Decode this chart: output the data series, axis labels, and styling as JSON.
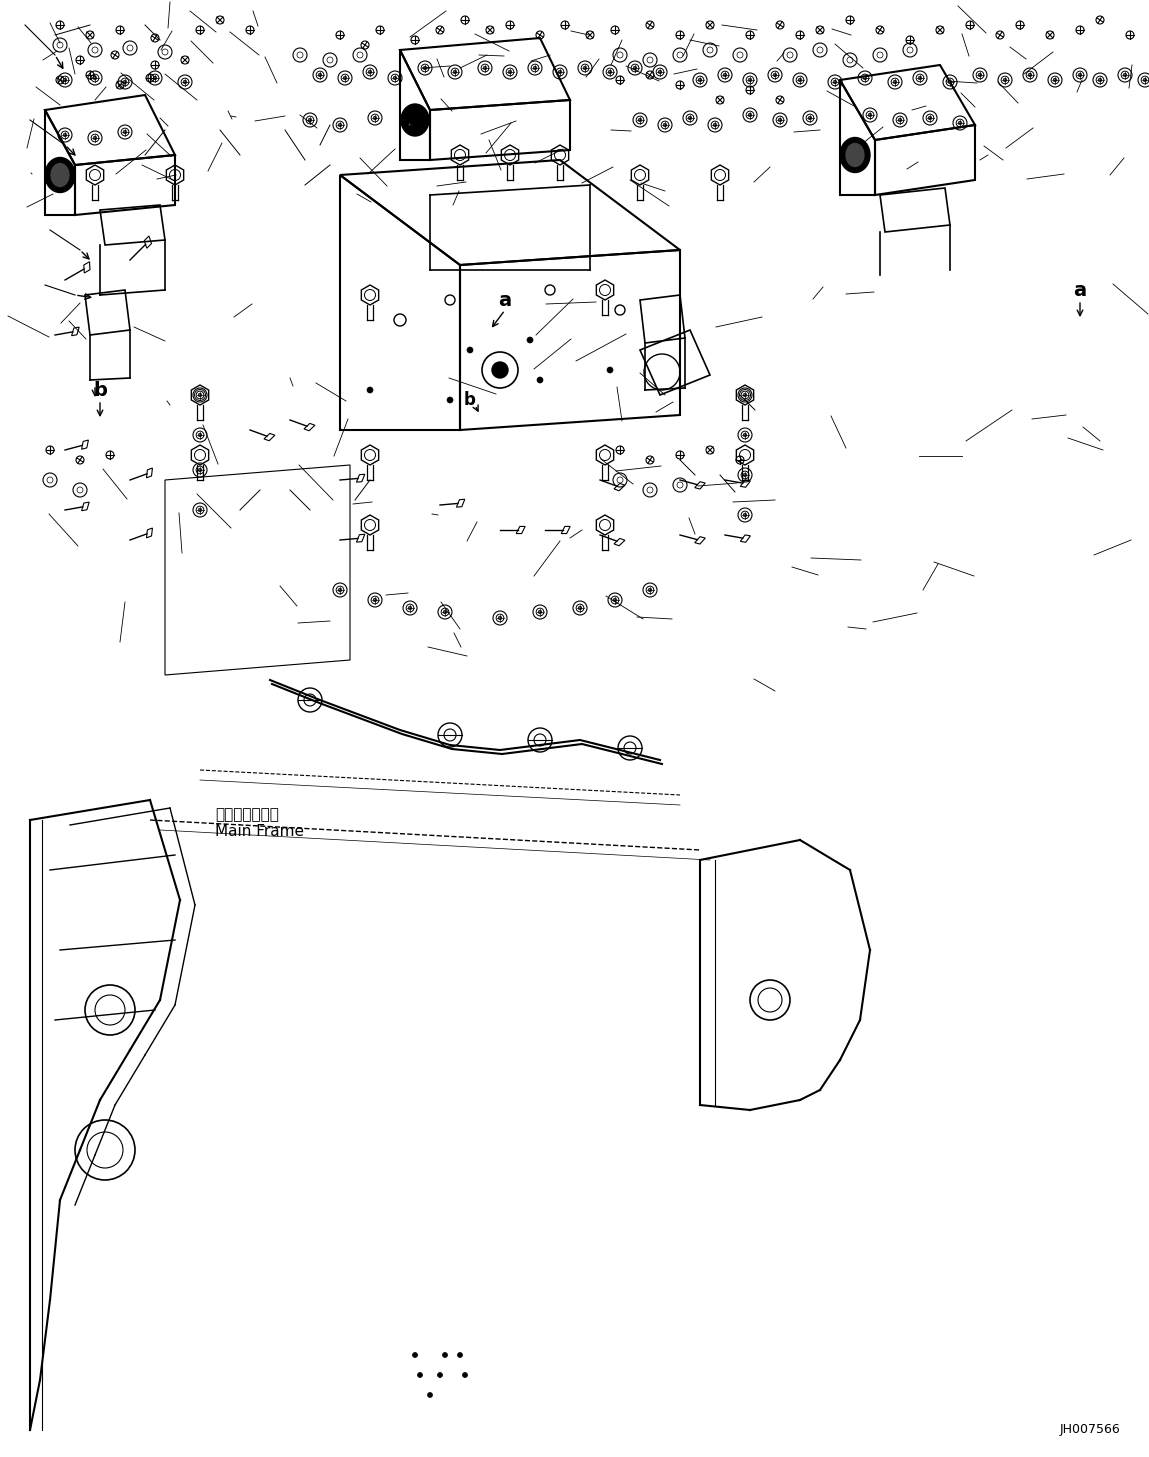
{
  "title": "",
  "background_color": "#ffffff",
  "line_color": "#000000",
  "image_code": "JH007566",
  "main_frame_label_jp": "メインフレーム",
  "main_frame_label_en": "Main Frame",
  "label_a": "a",
  "label_b": "b",
  "figsize": [
    11.49,
    14.57
  ],
  "dpi": 100
}
